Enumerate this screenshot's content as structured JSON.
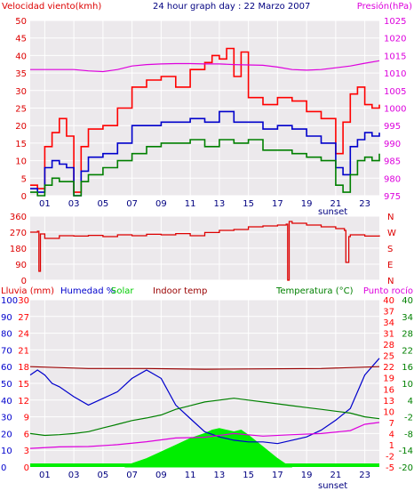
{
  "colors": {
    "wind_gust": "#ff0000",
    "wind_avg": "#0000cc",
    "wind_min": "#008000",
    "pressure": "#dd00dd",
    "direction": "#dd0000",
    "rain": "#0000cc",
    "humidity": "#0000cc",
    "solar": "#00ee00",
    "indoor": "#990000",
    "temperature": "#008000",
    "dewpoint": "#dd00dd",
    "grid": "#ffffff",
    "plot_bg": "#ece9ec"
  },
  "chart_data": [
    {
      "type": "line",
      "title": "24 hour graph day : 22 Marzo 2007",
      "ylabel_left": "Velocidad viento(kmh)",
      "ylabel_right": "Presión(hPa)",
      "x_ticks": [
        "01",
        "03",
        "05",
        "07",
        "09",
        "11",
        "13",
        "15",
        "17",
        "19",
        "21",
        "23"
      ],
      "x_annotation": "sunset",
      "xlim": [
        0,
        24
      ],
      "ylim_left": [
        0,
        50
      ],
      "yticks_left": [
        "0",
        "5",
        "10",
        "15",
        "20",
        "25",
        "30",
        "35",
        "40",
        "45",
        "50"
      ],
      "ylim_right": [
        975,
        1025
      ],
      "yticks_right": [
        "975",
        "980",
        "985",
        "990",
        "995",
        "1000",
        "1005",
        "1010",
        "1015",
        "1020",
        "1025"
      ],
      "series": [
        {
          "role": "gust",
          "axis": "left",
          "x": [
            0,
            0.5,
            1,
            1.5,
            2,
            2.5,
            3,
            3.5,
            4,
            5,
            6,
            7,
            8,
            9,
            10,
            11,
            12,
            12.5,
            13,
            13.5,
            14,
            14.5,
            15,
            16,
            17,
            18,
            19,
            20,
            21,
            21.5,
            22,
            22.5,
            23,
            23.5,
            24
          ],
          "y": [
            3,
            2,
            14,
            18,
            22,
            17,
            1,
            14,
            19,
            20,
            25,
            31,
            33,
            34,
            31,
            36,
            38,
            40,
            39,
            42,
            34,
            41,
            28,
            26,
            28,
            27,
            24,
            22,
            12,
            21,
            29,
            31,
            26,
            25,
            26
          ]
        },
        {
          "role": "average",
          "axis": "left",
          "x": [
            0,
            0.5,
            1,
            1.5,
            2,
            2.5,
            3,
            3.5,
            4,
            5,
            6,
            7,
            8,
            9,
            10,
            11,
            12,
            13,
            14,
            15,
            16,
            17,
            18,
            19,
            20,
            21,
            21.5,
            22,
            22.5,
            23,
            23.5,
            24
          ],
          "y": [
            2,
            1,
            8,
            10,
            9,
            8,
            0,
            7,
            11,
            12,
            15,
            20,
            20,
            21,
            21,
            22,
            21,
            24,
            21,
            21,
            19,
            20,
            19,
            17,
            15,
            8,
            6,
            14,
            16,
            18,
            17,
            18
          ]
        },
        {
          "role": "minimum",
          "axis": "left",
          "x": [
            0,
            0.5,
            1,
            1.5,
            2,
            2.5,
            3,
            3.5,
            4,
            5,
            6,
            7,
            8,
            9,
            10,
            11,
            12,
            13,
            14,
            15,
            16,
            17,
            18,
            19,
            20,
            21,
            21.5,
            22,
            22.5,
            23,
            23.5,
            24
          ],
          "y": [
            1,
            0,
            3,
            5,
            4,
            4,
            0,
            4,
            6,
            8,
            10,
            12,
            14,
            15,
            15,
            16,
            14,
            16,
            15,
            16,
            13,
            13,
            12,
            11,
            10,
            3,
            1,
            6,
            10,
            11,
            10,
            12
          ]
        },
        {
          "role": "pressure",
          "axis": "right",
          "x": [
            0,
            2,
            3,
            4,
            5,
            6,
            7,
            8,
            9,
            10,
            11,
            12,
            13,
            14,
            15,
            16,
            17,
            18,
            19,
            20,
            21,
            22,
            23,
            24
          ],
          "y": [
            1011,
            1011,
            1011,
            1010.6,
            1010.4,
            1011,
            1012,
            1012.4,
            1012.6,
            1012.7,
            1012.7,
            1012.6,
            1012.6,
            1012.4,
            1012.3,
            1012.2,
            1011.7,
            1011,
            1010.8,
            1011,
            1011.5,
            1012,
            1012.8,
            1013.5
          ]
        }
      ]
    },
    {
      "type": "line",
      "ylim": [
        0,
        360
      ],
      "yticks_left": [
        "0",
        "90",
        "180",
        "270",
        "360"
      ],
      "yticks_right": [
        "N",
        "E",
        "S",
        "W",
        "N"
      ],
      "x": [
        0,
        0.5,
        0.6,
        0.7,
        1,
        2,
        3,
        4,
        5,
        6,
        7,
        8,
        9,
        10,
        11,
        12,
        13,
        14,
        15,
        16,
        17,
        17.6,
        17.7,
        17.8,
        18,
        19,
        20,
        21,
        21.6,
        21.7,
        21.9,
        22,
        23,
        24
      ],
      "y": [
        270,
        275,
        50,
        260,
        235,
        250,
        248,
        252,
        245,
        255,
        250,
        258,
        255,
        262,
        250,
        268,
        280,
        285,
        300,
        305,
        310,
        315,
        0,
        330,
        320,
        310,
        300,
        290,
        280,
        100,
        245,
        255,
        248,
        252
      ]
    },
    {
      "type": "line",
      "labels": [
        "Lluvia (mm)",
        "Humedad %",
        "Solar",
        "Indoor temp",
        "Temperatura (°C)",
        "Punto rocío"
      ],
      "x_ticks": [
        "01",
        "03",
        "05",
        "07",
        "09",
        "11",
        "13",
        "15",
        "17",
        "19",
        "21",
        "23"
      ],
      "x_annotation": "sunset",
      "xlim": [
        0,
        24
      ],
      "rain_ticks": [
        "0",
        "3",
        "6",
        "9",
        "12",
        "15",
        "18",
        "21",
        "24",
        "27",
        "30"
      ],
      "humidity_ticks": [
        "0",
        "10",
        "20",
        "30",
        "40",
        "50",
        "60",
        "70",
        "80",
        "90",
        "100"
      ],
      "ylim_rain": [
        0,
        30
      ],
      "ylim_humidity": [
        0,
        100
      ],
      "right_ticks_a": [
        "-5",
        "-2",
        "1",
        "4",
        "7",
        "10",
        "13",
        "16",
        "19",
        "22",
        "25",
        "28",
        "31",
        "34",
        "37",
        "40"
      ],
      "right_ticks_b": [
        "-20",
        "-14",
        "-8",
        "-2",
        "4",
        "10",
        "16",
        "22",
        "28",
        "34",
        "40"
      ],
      "ylim_temperature": [
        -5,
        40
      ],
      "series": [
        {
          "role": "humidity",
          "x": [
            0,
            0.5,
            1,
            1.5,
            2,
            3,
            4,
            5,
            6,
            7,
            8,
            9,
            10,
            11,
            12,
            13,
            14,
            15,
            16,
            17,
            18,
            19,
            20,
            21,
            22,
            23,
            24
          ],
          "y": [
            55,
            58,
            55,
            50,
            48,
            42,
            37,
            41,
            45,
            53,
            58,
            53,
            37,
            29,
            21,
            18,
            16,
            15,
            15,
            14,
            16,
            18,
            22,
            28,
            35,
            55,
            65
          ]
        },
        {
          "role": "indoor_temp",
          "x": [
            0,
            4,
            8,
            12,
            16,
            20,
            24
          ],
          "y": [
            22,
            21.5,
            21.5,
            21.3,
            21.4,
            21.5,
            22
          ]
        },
        {
          "role": "temperature",
          "x": [
            0,
            1,
            2,
            3,
            4,
            5,
            6,
            7,
            8,
            9,
            10,
            11,
            12,
            13,
            14,
            15,
            16,
            17,
            18,
            19,
            20,
            21,
            22,
            23,
            24
          ],
          "y": [
            4,
            3.5,
            3.7,
            4,
            4.5,
            5.5,
            6.5,
            7.5,
            8.2,
            9,
            10.5,
            11.5,
            12.5,
            13,
            13.5,
            13,
            12.5,
            12,
            11.5,
            11,
            10.5,
            10,
            9.5,
            8.5,
            8
          ]
        },
        {
          "role": "dewpoint",
          "x": [
            0,
            2,
            4,
            6,
            8,
            10,
            12,
            14,
            16,
            18,
            20,
            22,
            23,
            24
          ],
          "y": [
            0,
            0.4,
            0.5,
            1,
            1.8,
            2.8,
            3,
            4,
            3.3,
            3.7,
            4,
            4.8,
            6.5,
            7
          ]
        },
        {
          "role": "solar",
          "x": [
            6.5,
            7,
            8,
            9,
            10,
            11,
            12,
            12.5,
            13,
            13.5,
            14,
            14.5,
            15,
            16,
            17,
            17.5,
            18
          ],
          "y": [
            0,
            2,
            5,
            9,
            13,
            17,
            20,
            22,
            23,
            22,
            21,
            22,
            19,
            12,
            5,
            2,
            0
          ]
        }
      ]
    }
  ]
}
